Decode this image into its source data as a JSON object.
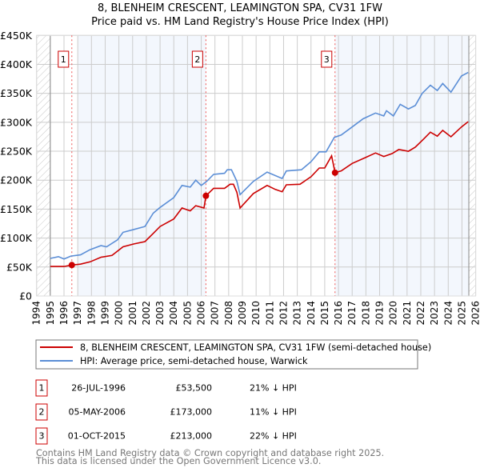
{
  "chart_data": {
    "type": "line",
    "title": "8, BLENHEIM CRESCENT, LEAMINGTON SPA, CV31 1FW",
    "subtitle": "Price paid vs. HM Land Registry's House Price Index (HPI)",
    "xlim": [
      1994,
      2026
    ],
    "ylim": [
      0,
      450000
    ],
    "x_ticks": [
      "1994",
      "1995",
      "1996",
      "1997",
      "1998",
      "1999",
      "2000",
      "2001",
      "2002",
      "2003",
      "2004",
      "2005",
      "2006",
      "2007",
      "2008",
      "2009",
      "2010",
      "2011",
      "2012",
      "2013",
      "2014",
      "2015",
      "2016",
      "2017",
      "2018",
      "2019",
      "2020",
      "2021",
      "2022",
      "2023",
      "2024",
      "2025",
      "2026"
    ],
    "y_ticks": [
      {
        "v": 0,
        "label": "£0"
      },
      {
        "v": 50000,
        "label": "£50K"
      },
      {
        "v": 100000,
        "label": "£100K"
      },
      {
        "v": 150000,
        "label": "£150K"
      },
      {
        "v": 200000,
        "label": "£200K"
      },
      {
        "v": 250000,
        "label": "£250K"
      },
      {
        "v": 300000,
        "label": "£300K"
      },
      {
        "v": 350000,
        "label": "£350K"
      },
      {
        "v": 400000,
        "label": "£400K"
      },
      {
        "v": 450000,
        "label": "£450K"
      }
    ],
    "grid": true,
    "series": [
      {
        "name": "8, BLENHEIM CRESCENT, LEAMINGTON SPA, CV31 1FW (semi-detached house)",
        "color": "#cc0000",
        "x": [
          1995,
          1996,
          1996.57,
          1997.2,
          1997.9,
          1998.7,
          1999.5,
          2000.3,
          2001.1,
          2001.9,
          2002.5,
          2003,
          2004,
          2004.6,
          2005.2,
          2005.6,
          2006.2,
          2006.34,
          2006.9,
          2007.7,
          2008.1,
          2008.35,
          2008.6,
          2008.83,
          2009.8,
          2010.8,
          2011.4,
          2011.9,
          2012.2,
          2013.2,
          2014,
          2014.6,
          2015,
          2015.5,
          2015.75,
          2016.2,
          2017,
          2017.96,
          2018.7,
          2019.3,
          2019.9,
          2020.4,
          2021.1,
          2021.6,
          2022.2,
          2022.7,
          2023.2,
          2023.6,
          2024.2,
          2024.96,
          2025.45
        ],
        "y": [
          51000,
          51000,
          53500,
          55000,
          59000,
          67000,
          70000,
          85000,
          90000,
          94000,
          108000,
          120000,
          133000,
          152000,
          147000,
          156000,
          152000,
          173000,
          186000,
          186000,
          193000,
          193000,
          179000,
          152000,
          177000,
          191000,
          184000,
          180000,
          192000,
          193000,
          206000,
          221000,
          221000,
          242000,
          213000,
          216000,
          229000,
          239000,
          247000,
          241000,
          246000,
          253000,
          250000,
          257000,
          271000,
          283000,
          276000,
          286000,
          275000,
          292000,
          301000
        ]
      },
      {
        "name": "HPI: Average price, semi-detached house, Warwick",
        "color": "#5b8ed6",
        "x": [
          1995,
          1995.6,
          1996,
          1996.5,
          1997.2,
          1997.9,
          1998.7,
          1999.1,
          1999.9,
          2000.3,
          2001.1,
          2001.9,
          2002.5,
          2003,
          2004,
          2004.6,
          2005.2,
          2005.6,
          2006,
          2006.4,
          2006.9,
          2007.7,
          2007.9,
          2008.2,
          2008.6,
          2008.83,
          2009.8,
          2010.8,
          2011.9,
          2012.2,
          2013.3,
          2014,
          2014.6,
          2015.1,
          2015.7,
          2016.2,
          2017,
          2017.8,
          2018.7,
          2019.3,
          2019.5,
          2020,
          2020.5,
          2021.1,
          2021.6,
          2022.1,
          2022.7,
          2023.2,
          2023.6,
          2024.2,
          2024.96,
          2025.45
        ],
        "y": [
          65000,
          68000,
          64000,
          69000,
          71000,
          80000,
          87000,
          85000,
          97000,
          110000,
          115000,
          120000,
          143000,
          153000,
          170000,
          191000,
          188000,
          200000,
          191000,
          198000,
          210000,
          212000,
          218000,
          218000,
          198000,
          175000,
          198000,
          214000,
          203000,
          216000,
          218000,
          232000,
          249000,
          249000,
          274000,
          278000,
          292000,
          306000,
          316000,
          311000,
          320000,
          311000,
          331000,
          323000,
          329000,
          350000,
          364000,
          355000,
          367000,
          352000,
          380000,
          386000
        ]
      }
    ],
    "sales": [
      {
        "n": "1",
        "x": 1996.57,
        "price": 53500,
        "date": "26-JUL-1996",
        "price_label": "£53,500",
        "hpi": "21% ↓ HPI"
      },
      {
        "n": "2",
        "x": 2006.34,
        "price": 173000,
        "date": "05-MAY-2006",
        "price_label": "£173,000",
        "hpi": "11% ↓ HPI"
      },
      {
        "n": "3",
        "x": 2015.75,
        "price": 213000,
        "date": "01-OCT-2015",
        "price_label": "£213,000",
        "hpi": "22% ↓ HPI"
      }
    ],
    "shaded_ranges": [
      [
        1997,
        2006.34
      ],
      [
        2015.75,
        2025.5
      ]
    ],
    "hatched_ranges": [
      [
        1994,
        1995
      ],
      [
        2025.5,
        2026
      ]
    ]
  },
  "footer": {
    "line1": "Contains HM Land Registry data © Crown copyright and database right 2025.",
    "line2": "This data is licensed under the Open Government Licence v3.0."
  }
}
